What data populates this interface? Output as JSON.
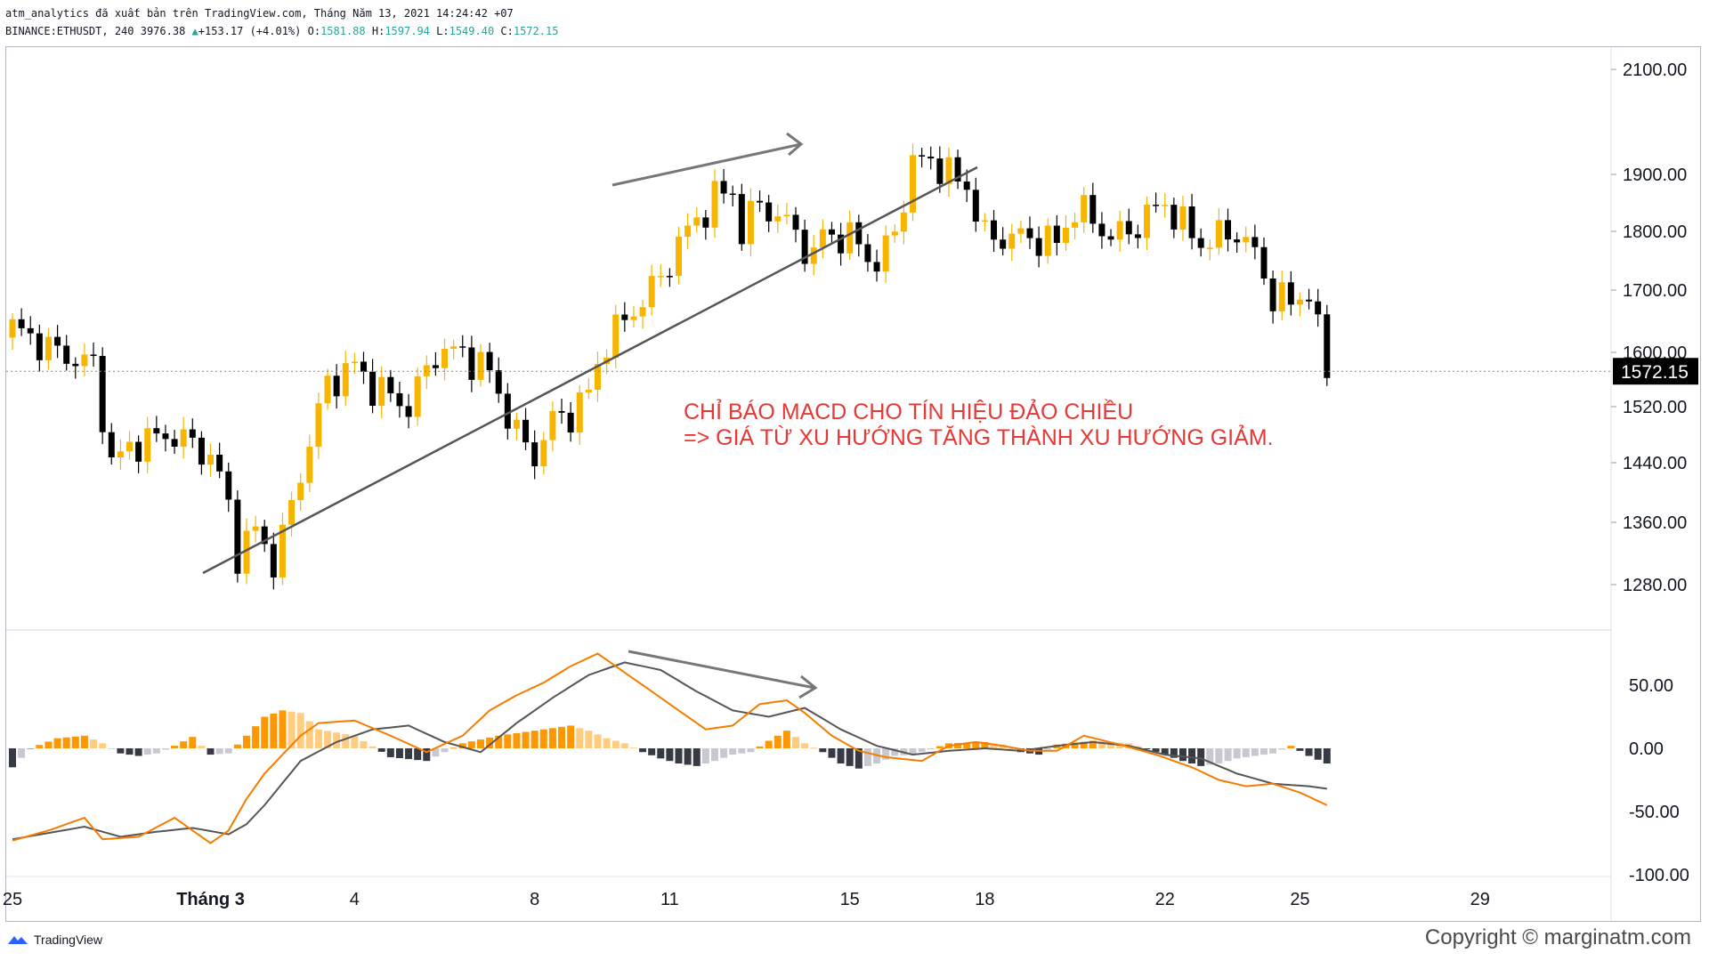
{
  "header": {
    "line1": "atm_analytics đã xuất bản trên TradingView.com, Tháng Năm 13, 2021 14:24:42 +07",
    "symbol": "BINANCE:ETHUSDT, 240",
    "last": "3976.38",
    "change": "+153.17 (+4.01%)",
    "o_label": "O:",
    "o": "1581.88",
    "h_label": "H:",
    "h": "1597.94",
    "l_label": "L:",
    "l": "1549.40",
    "c_label": "C:",
    "c": "1572.15"
  },
  "annotation": {
    "line1": "CHỈ BÁO MACD CHO TÍN HIỆU ĐẢO CHIỀU",
    "line2": "=> GIÁ TỪ XU HƯỚNG TĂNG THÀNH XU HƯỚNG GIẢM."
  },
  "footer": {
    "brand": "TradingView",
    "copyright": "Copyright © marginatm.com"
  },
  "colors": {
    "up": "#f7b500",
    "down": "#000000",
    "macd_line": "#f57c00",
    "signal_line": "#555555",
    "hist_pos_strong": "#ff9800",
    "hist_pos_weak": "#ffcc80",
    "hist_neg_strong": "#363a45",
    "hist_neg_weak": "#c8c9d0",
    "annotation": "#e53935"
  },
  "chart_data": [
    {
      "type": "candlestick",
      "title": "BINANCE:ETHUSDT, 240",
      "price_labels": [
        "2100.00",
        "1900.00",
        "1800.00",
        "1700.00",
        "1600.00",
        "1520.00",
        "1440.00",
        "1360.00",
        "1280.00"
      ],
      "price_ticks": [
        2100,
        1900,
        1800,
        1700,
        1600,
        1520,
        1440,
        1360,
        1280
      ],
      "current_price": "1572.15",
      "x_labels": [
        "25",
        "Tháng 3",
        "4",
        "8",
        "11",
        "15",
        "18",
        "22",
        "25",
        "29"
      ],
      "x_label_index": [
        0,
        22,
        38,
        58,
        73,
        93,
        108,
        128,
        143,
        163
      ],
      "bars": 147,
      "close_path": [
        [
          0,
          1640
        ],
        [
          5,
          1600
        ],
        [
          9,
          1580
        ],
        [
          11,
          1440
        ],
        [
          14,
          1470
        ],
        [
          18,
          1480
        ],
        [
          22,
          1450
        ],
        [
          23,
          1420
        ],
        [
          24,
          1380
        ],
        [
          25,
          1320
        ],
        [
          27,
          1350
        ],
        [
          29,
          1310
        ],
        [
          30,
          1340
        ],
        [
          35,
          1555
        ],
        [
          38,
          1580
        ],
        [
          40,
          1550
        ],
        [
          44,
          1520
        ],
        [
          47,
          1600
        ],
        [
          50,
          1600
        ],
        [
          53,
          1570
        ],
        [
          56,
          1480
        ],
        [
          58,
          1450
        ],
        [
          60,
          1500
        ],
        [
          62,
          1510
        ],
        [
          64,
          1540
        ],
        [
          66,
          1620
        ],
        [
          68,
          1650
        ],
        [
          72,
          1720
        ],
        [
          74,
          1780
        ],
        [
          78,
          1860
        ],
        [
          80,
          1870
        ],
        [
          81,
          1800
        ],
        [
          83,
          1850
        ],
        [
          87,
          1800
        ],
        [
          89,
          1750
        ],
        [
          90,
          1800
        ],
        [
          92,
          1790
        ],
        [
          94,
          1780
        ],
        [
          96,
          1740
        ],
        [
          98,
          1800
        ],
        [
          100,
          1920
        ],
        [
          102,
          1930
        ],
        [
          104,
          1900
        ],
        [
          106,
          1880
        ],
        [
          108,
          1790
        ],
        [
          110,
          1790
        ],
        [
          113,
          1790
        ],
        [
          116,
          1780
        ],
        [
          118,
          1840
        ],
        [
          120,
          1820
        ],
        [
          122,
          1790
        ],
        [
          124,
          1800
        ],
        [
          127,
          1840
        ],
        [
          128,
          1850
        ],
        [
          130,
          1810
        ],
        [
          132,
          1780
        ],
        [
          134,
          1790
        ],
        [
          136,
          1800
        ],
        [
          138,
          1760
        ],
        [
          140,
          1690
        ],
        [
          142,
          1680
        ],
        [
          144,
          1700
        ],
        [
          145,
          1630
        ],
        [
          146,
          1572
        ]
      ],
      "wick_pct": 0.8
    },
    {
      "type": "line+histogram",
      "title": "MACD",
      "y_labels": [
        "50.00",
        "0.00",
        "-50.00",
        "-100.00"
      ],
      "y_ticks": [
        50,
        0,
        -50,
        -100
      ],
      "ylim": [
        -100,
        100
      ],
      "series": [
        {
          "name": "MACD",
          "points": [
            [
              0,
              -73
            ],
            [
              4,
              -65
            ],
            [
              8,
              -55
            ],
            [
              10,
              -72
            ],
            [
              14,
              -70
            ],
            [
              18,
              -55
            ],
            [
              22,
              -75
            ],
            [
              24,
              -65
            ],
            [
              26,
              -40
            ],
            [
              28,
              -20
            ],
            [
              32,
              10
            ],
            [
              34,
              20
            ],
            [
              38,
              22
            ],
            [
              42,
              10
            ],
            [
              46,
              -3
            ],
            [
              50,
              10
            ],
            [
              53,
              30
            ],
            [
              56,
              42
            ],
            [
              59,
              52
            ],
            [
              62,
              65
            ],
            [
              65,
              75
            ],
            [
              68,
              60
            ],
            [
              71,
              45
            ],
            [
              74,
              30
            ],
            [
              77,
              15
            ],
            [
              80,
              18
            ],
            [
              83,
              35
            ],
            [
              86,
              38
            ],
            [
              88,
              28
            ],
            [
              91,
              10
            ],
            [
              94,
              -2
            ],
            [
              97,
              -7
            ],
            [
              101,
              -10
            ],
            [
              104,
              2
            ],
            [
              107,
              5
            ],
            [
              110,
              2
            ],
            [
              113,
              -2
            ],
            [
              116,
              -2
            ],
            [
              119,
              10
            ],
            [
              123,
              3
            ],
            [
              127,
              -5
            ],
            [
              131,
              -15
            ],
            [
              134,
              -25
            ],
            [
              137,
              -30
            ],
            [
              140,
              -28
            ],
            [
              143,
              -35
            ],
            [
              146,
              -45
            ]
          ]
        },
        {
          "name": "Signal",
          "points": [
            [
              0,
              -72
            ],
            [
              4,
              -67
            ],
            [
              8,
              -62
            ],
            [
              12,
              -70
            ],
            [
              16,
              -66
            ],
            [
              20,
              -63
            ],
            [
              24,
              -68
            ],
            [
              26,
              -60
            ],
            [
              28,
              -45
            ],
            [
              32,
              -10
            ],
            [
              36,
              5
            ],
            [
              40,
              15
            ],
            [
              44,
              18
            ],
            [
              48,
              5
            ],
            [
              52,
              -3
            ],
            [
              56,
              20
            ],
            [
              60,
              40
            ],
            [
              64,
              58
            ],
            [
              68,
              68
            ],
            [
              72,
              62
            ],
            [
              76,
              45
            ],
            [
              80,
              30
            ],
            [
              84,
              25
            ],
            [
              88,
              32
            ],
            [
              92,
              15
            ],
            [
              96,
              2
            ],
            [
              100,
              -5
            ],
            [
              104,
              -2
            ],
            [
              108,
              0
            ],
            [
              112,
              -2
            ],
            [
              116,
              2
            ],
            [
              120,
              5
            ],
            [
              124,
              2
            ],
            [
              128,
              -5
            ],
            [
              132,
              -8
            ],
            [
              136,
              -20
            ],
            [
              140,
              -28
            ],
            [
              144,
              -30
            ],
            [
              146,
              -32
            ]
          ]
        },
        {
          "name": "Histogram",
          "points": [
            [
              0,
              -15
            ],
            [
              2,
              0
            ],
            [
              5,
              8
            ],
            [
              8,
              10
            ],
            [
              10,
              4
            ],
            [
              12,
              -4
            ],
            [
              14,
              -6
            ],
            [
              16,
              -4
            ],
            [
              18,
              2
            ],
            [
              20,
              9
            ],
            [
              22,
              -5
            ],
            [
              24,
              -4
            ],
            [
              26,
              10
            ],
            [
              28,
              25
            ],
            [
              30,
              30
            ],
            [
              32,
              28
            ],
            [
              34,
              15
            ],
            [
              38,
              10
            ],
            [
              42,
              -7
            ],
            [
              46,
              -10
            ],
            [
              50,
              4
            ],
            [
              54,
              10
            ],
            [
              58,
              14
            ],
            [
              62,
              18
            ],
            [
              64,
              14
            ],
            [
              66,
              8
            ],
            [
              68,
              4
            ],
            [
              70,
              -3
            ],
            [
              72,
              -8
            ],
            [
              74,
              -12
            ],
            [
              76,
              -14
            ],
            [
              78,
              -10
            ],
            [
              80,
              -5
            ],
            [
              82,
              -3
            ],
            [
              84,
              6
            ],
            [
              86,
              14
            ],
            [
              88,
              4
            ],
            [
              90,
              -3
            ],
            [
              92,
              -12
            ],
            [
              94,
              -16
            ],
            [
              96,
              -12
            ],
            [
              98,
              -6
            ],
            [
              100,
              -5
            ],
            [
              104,
              4
            ],
            [
              108,
              5
            ],
            [
              110,
              3
            ],
            [
              112,
              -3
            ],
            [
              114,
              -5
            ],
            [
              116,
              3
            ],
            [
              120,
              6
            ],
            [
              124,
              4
            ],
            [
              128,
              -5
            ],
            [
              130,
              -10
            ],
            [
              132,
              -14
            ],
            [
              134,
              -12
            ],
            [
              136,
              -8
            ],
            [
              138,
              -6
            ],
            [
              140,
              -4
            ],
            [
              142,
              2
            ],
            [
              144,
              -6
            ],
            [
              146,
              -12
            ]
          ]
        }
      ]
    }
  ]
}
